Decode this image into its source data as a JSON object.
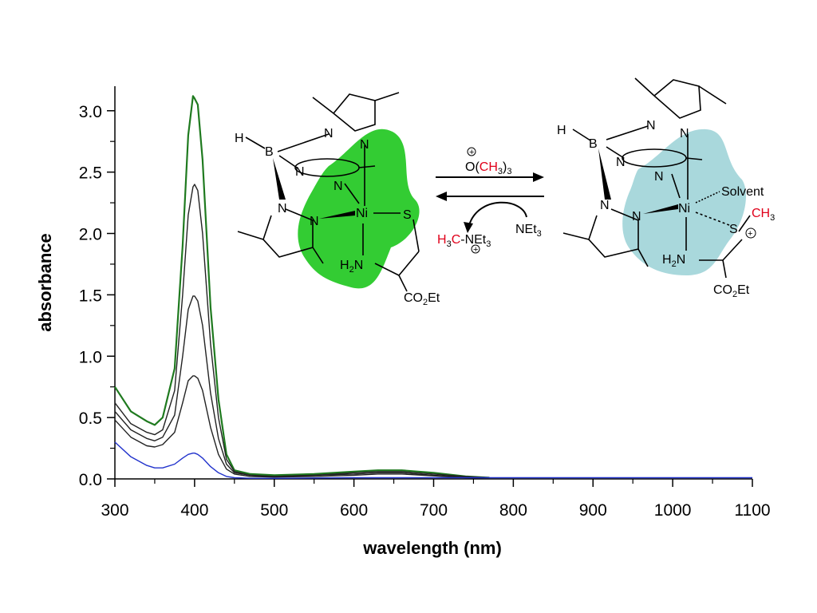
{
  "chart_data": {
    "type": "line",
    "xlabel": "wavelength (nm)",
    "ylabel": "absorbance",
    "xlim": [
      300,
      1100
    ],
    "ylim": [
      0,
      3.2
    ],
    "xticks": [
      300,
      400,
      500,
      600,
      700,
      800,
      900,
      1000,
      1100
    ],
    "xtick_labels": [
      "300",
      "400",
      "500",
      "600",
      "700",
      "800",
      "900",
      "1000",
      "1100"
    ],
    "yticks": [
      0,
      0.5,
      1,
      1.5,
      2,
      2.5,
      3
    ],
    "ytick_labels": [
      "0.0",
      "0.5",
      "1.0",
      "1.5",
      "2.0",
      "2.5",
      "3.0"
    ],
    "grid": false,
    "series": [
      {
        "color": "#1f7a1f",
        "x": [
          300,
          320,
          340,
          350,
          360,
          375,
          385,
          392,
          398,
          400,
          404,
          410,
          420,
          430,
          440,
          450,
          470,
          500,
          550,
          600,
          630,
          660,
          700,
          740,
          770
        ],
        "y": [
          0.75,
          0.55,
          0.47,
          0.44,
          0.5,
          0.9,
          1.9,
          2.8,
          3.12,
          3.1,
          3.05,
          2.6,
          1.4,
          0.65,
          0.2,
          0.07,
          0.04,
          0.03,
          0.04,
          0.06,
          0.07,
          0.07,
          0.05,
          0.02,
          0.01
        ]
      },
      {
        "color": "#222222",
        "x": [
          300,
          320,
          340,
          350,
          360,
          375,
          385,
          392,
          398,
          400,
          404,
          410,
          420,
          430,
          440,
          450,
          470,
          500,
          550,
          600,
          630,
          660,
          700,
          740,
          770
        ],
        "y": [
          0.62,
          0.45,
          0.38,
          0.36,
          0.4,
          0.72,
          1.5,
          2.15,
          2.38,
          2.4,
          2.35,
          2.0,
          1.1,
          0.5,
          0.16,
          0.06,
          0.03,
          0.02,
          0.03,
          0.05,
          0.06,
          0.06,
          0.04,
          0.02,
          0.01
        ]
      },
      {
        "color": "#222222",
        "x": [
          300,
          320,
          340,
          350,
          360,
          375,
          385,
          392,
          398,
          400,
          404,
          410,
          420,
          430,
          440,
          450,
          470,
          500,
          550,
          600,
          630,
          660,
          700,
          740,
          770
        ],
        "y": [
          0.55,
          0.4,
          0.33,
          0.31,
          0.34,
          0.52,
          1.0,
          1.38,
          1.49,
          1.49,
          1.45,
          1.25,
          0.7,
          0.33,
          0.12,
          0.05,
          0.03,
          0.02,
          0.03,
          0.04,
          0.05,
          0.05,
          0.03,
          0.015,
          0.01
        ]
      },
      {
        "color": "#222222",
        "x": [
          300,
          320,
          340,
          350,
          360,
          375,
          385,
          392,
          398,
          400,
          404,
          410,
          420,
          430,
          440,
          450,
          470,
          500,
          550,
          600,
          630,
          660,
          700,
          740,
          770
        ],
        "y": [
          0.48,
          0.34,
          0.27,
          0.26,
          0.28,
          0.38,
          0.62,
          0.8,
          0.84,
          0.84,
          0.82,
          0.72,
          0.42,
          0.2,
          0.08,
          0.04,
          0.02,
          0.015,
          0.02,
          0.03,
          0.04,
          0.04,
          0.025,
          0.01,
          0.005
        ]
      },
      {
        "color": "#2233cc",
        "x": [
          300,
          320,
          340,
          350,
          360,
          375,
          385,
          392,
          398,
          400,
          404,
          410,
          420,
          430,
          440,
          450,
          470,
          500,
          600,
          700,
          800,
          900,
          1000,
          1100
        ],
        "y": [
          0.3,
          0.18,
          0.11,
          0.09,
          0.09,
          0.12,
          0.17,
          0.2,
          0.21,
          0.21,
          0.2,
          0.17,
          0.1,
          0.05,
          0.02,
          0.01,
          0.005,
          0.005,
          0.01,
          0.01,
          0.01,
          0.01,
          0.01,
          0.01
        ]
      }
    ]
  },
  "scheme": {
    "left_labels": {
      "h": "H",
      "b": "B",
      "n1": "N",
      "n2": "N",
      "n3": "N",
      "n4": "N",
      "n5": "N",
      "n6": "N",
      "ni": "Ni",
      "s": "S",
      "nh2": "H",
      "nh2_sub": "2",
      "nh2_n": "N",
      "co2et_co": "CO",
      "co2et_sub": "2",
      "co2et_et": "Et"
    },
    "right_labels": {
      "h": "H",
      "b": "B",
      "n1": "N",
      "n2": "N",
      "n3": "N",
      "n4": "N",
      "n5": "N",
      "n6": "N",
      "ni": "Ni",
      "solvent": "Solvent",
      "s": "S",
      "ch3": "CH",
      "ch3_sub": "3",
      "plus": "+",
      "nh2": "H",
      "nh2_sub": "2",
      "nh2_n": "N",
      "co2et_co": "CO",
      "co2et_sub": "2",
      "co2et_et": "Et"
    },
    "reagent_top": {
      "o": "O",
      "o_charge": "+",
      "paren_open": "(",
      "ch3": "CH",
      "ch3_sub": "3",
      "paren_close": ")",
      "sub": "3"
    },
    "reagent_bottom_left": {
      "h3c_h": "H",
      "h3c_sub": "3",
      "h3c_c": "C",
      "dash": "-",
      "net3": "NEt",
      "net3_sub": "3",
      "charge": "+"
    },
    "reagent_bottom_right": {
      "net3": "NEt",
      "net3_sub": "3"
    },
    "colors": {
      "left_blob": "#33cc33",
      "right_blob": "#a9d8dc",
      "red": "#e0001a"
    }
  }
}
